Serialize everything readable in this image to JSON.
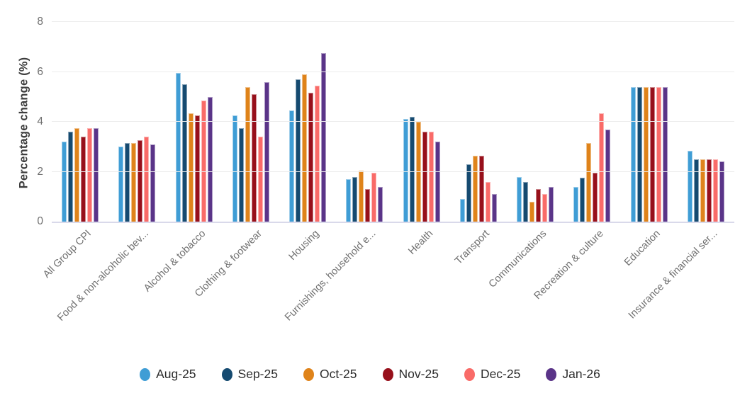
{
  "chart_data": {
    "type": "bar",
    "title": "",
    "xlabel": "",
    "ylabel": "Percentage change (%)",
    "ylim": [
      0,
      8
    ],
    "yticks": [
      0,
      2,
      4,
      6,
      8
    ],
    "grid": true,
    "legend_position": "bottom",
    "categories": [
      "All Group CPI",
      "Food & non-alcoholic bev...",
      "Alcohol & tobacco",
      "Clothing & footwear",
      "Housing",
      "Furnishings, household e...",
      "Health",
      "Transport",
      "Communications",
      "Recreation & culture",
      "Education",
      "Insurance & financial ser..."
    ],
    "series": [
      {
        "name": "Aug-25",
        "color": "#3f9dd5",
        "values": [
          3.2,
          3.0,
          5.95,
          4.25,
          4.45,
          1.7,
          4.1,
          0.9,
          1.8,
          1.4,
          5.4,
          2.85
        ]
      },
      {
        "name": "Sep-25",
        "color": "#154a70",
        "values": [
          3.6,
          3.15,
          5.5,
          3.75,
          5.7,
          1.8,
          4.2,
          2.3,
          1.6,
          1.75,
          5.4,
          2.5
        ]
      },
      {
        "name": "Oct-25",
        "color": "#df831a",
        "values": [
          3.75,
          3.15,
          4.35,
          5.4,
          5.9,
          2.05,
          4.0,
          2.65,
          0.8,
          3.15,
          5.4,
          2.5
        ]
      },
      {
        "name": "Nov-25",
        "color": "#97101b",
        "values": [
          3.4,
          3.25,
          4.25,
          5.1,
          5.15,
          1.3,
          3.6,
          2.65,
          1.3,
          1.95,
          5.4,
          2.5
        ]
      },
      {
        "name": "Dec-25",
        "color": "#f96b68",
        "values": [
          3.75,
          3.4,
          4.85,
          3.4,
          5.45,
          1.95,
          3.6,
          1.6,
          1.1,
          4.35,
          5.4,
          2.5
        ]
      },
      {
        "name": "Jan-26",
        "color": "#5a3488",
        "values": [
          3.75,
          3.1,
          5.0,
          5.6,
          6.75,
          1.4,
          3.2,
          1.1,
          1.4,
          3.7,
          5.4,
          2.4
        ]
      }
    ]
  }
}
